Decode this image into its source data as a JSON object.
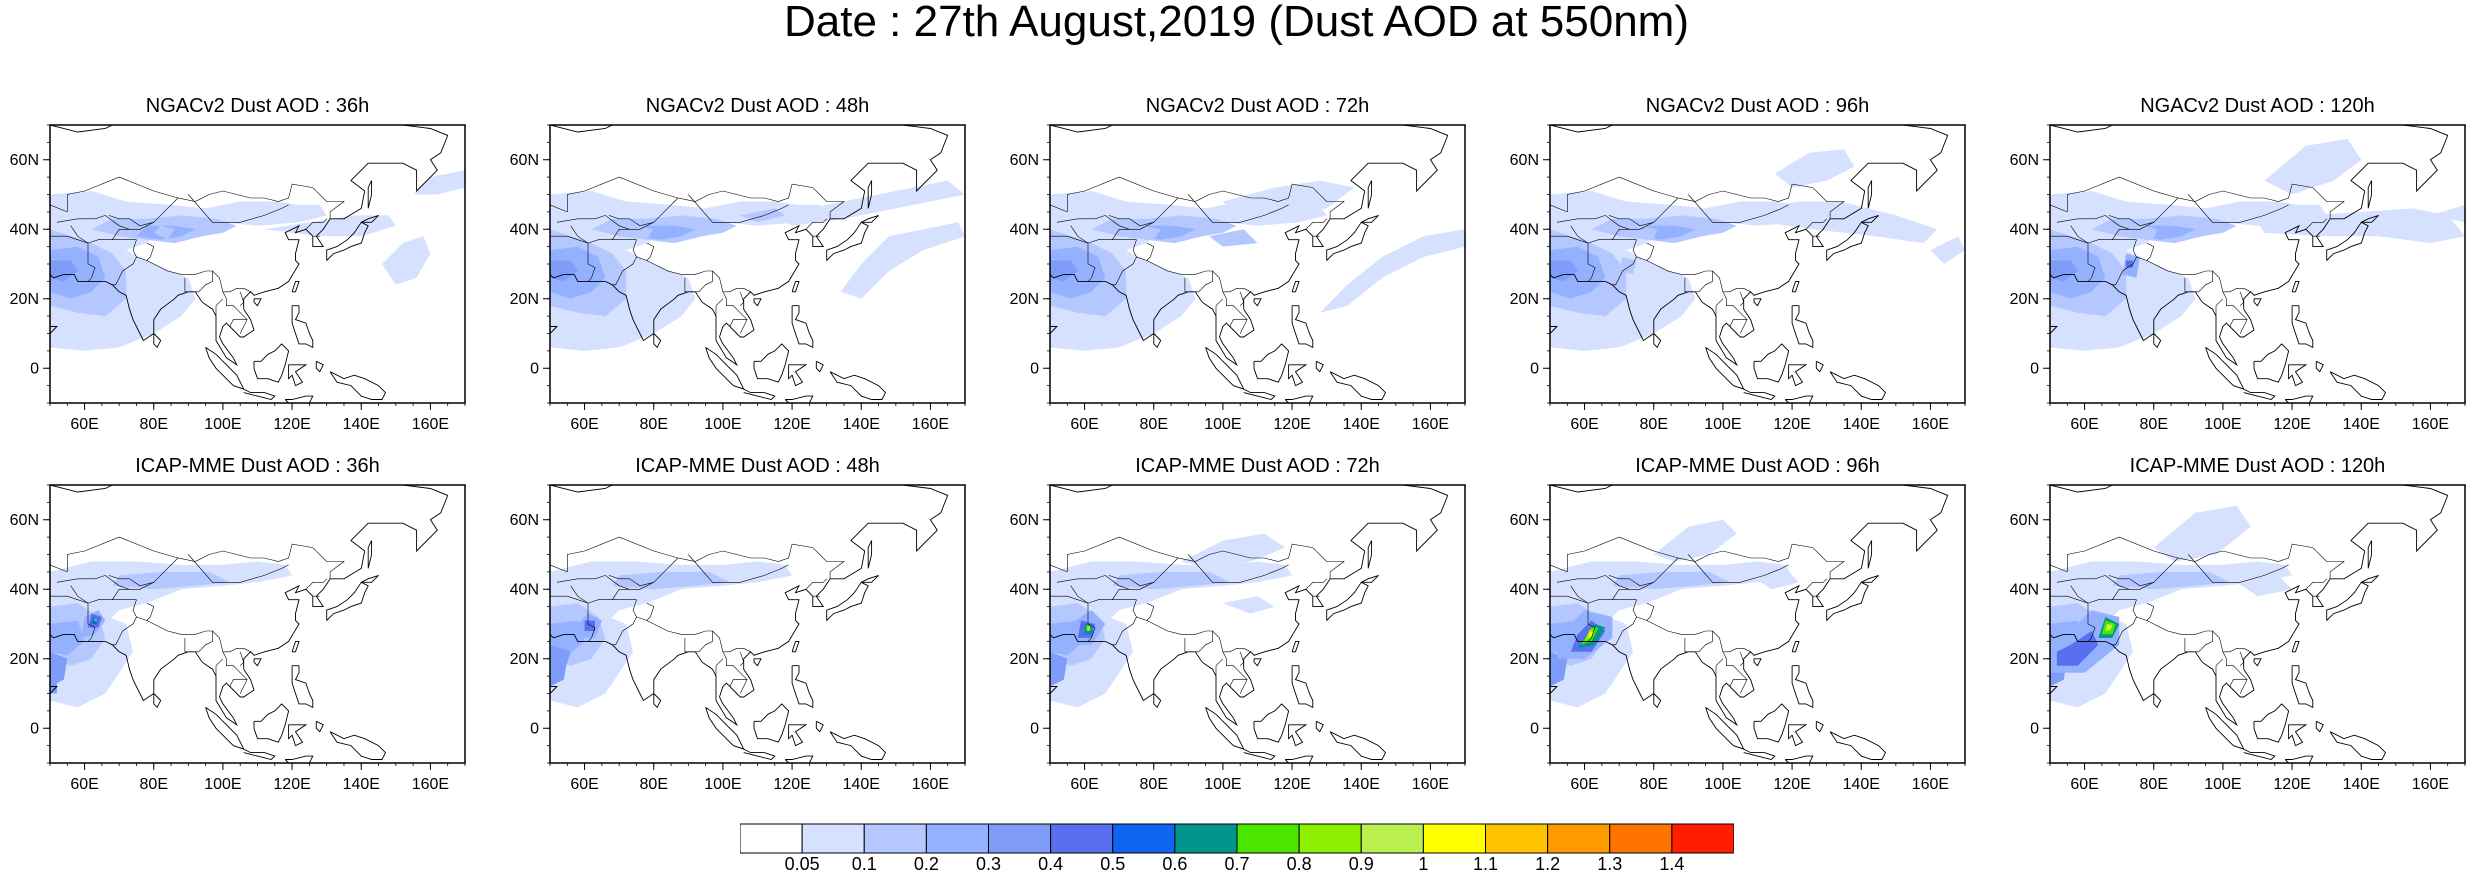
{
  "figure": {
    "title": "Date : 27th August,2019 (Dust AOD at 550nm)"
  },
  "map_axes": {
    "lon_ticks": [
      "60E",
      "80E",
      "100E",
      "120E",
      "140E",
      "160E"
    ],
    "lat_ticks": [
      "60N",
      "40N",
      "20N",
      "0"
    ],
    "lon_range": [
      50,
      170
    ],
    "lat_range": [
      -10,
      70
    ]
  },
  "panels": [
    {
      "id": "ngac-36",
      "title": "NGACv2 Dust AOD : 36h",
      "max_level": "0.4"
    },
    {
      "id": "ngac-48",
      "title": "NGACv2 Dust AOD : 48h",
      "max_level": "0.4"
    },
    {
      "id": "ngac-72",
      "title": "NGACv2 Dust AOD : 72h",
      "max_level": "0.4"
    },
    {
      "id": "ngac-96",
      "title": "NGACv2 Dust AOD : 96h",
      "max_level": "0.4"
    },
    {
      "id": "ngac-120",
      "title": "NGACv2 Dust AOD : 120h",
      "max_level": "0.6"
    },
    {
      "id": "icap-36",
      "title": "ICAP-MME Dust AOD : 36h",
      "max_level": "0.8"
    },
    {
      "id": "icap-48",
      "title": "ICAP-MME Dust AOD : 48h",
      "max_level": "0.5"
    },
    {
      "id": "icap-72",
      "title": "ICAP-MME Dust AOD : 72h",
      "max_level": "1.0"
    },
    {
      "id": "icap-96",
      "title": "ICAP-MME Dust AOD : 96h",
      "max_level": "1.1"
    },
    {
      "id": "icap-120",
      "title": "ICAP-MME Dust AOD : 120h",
      "max_level": "1.1"
    }
  ],
  "colorbar": {
    "labels": [
      "0.05",
      "0.1",
      "0.2",
      "0.3",
      "0.4",
      "0.5",
      "0.6",
      "0.7",
      "0.8",
      "0.9",
      "1",
      "1.1",
      "1.2",
      "1.3",
      "1.4"
    ],
    "colors": [
      "#ffffff",
      "#d6e1ff",
      "#b4c8ff",
      "#94b1ff",
      "#7e9cf8",
      "#5a6ef0",
      "#0f64f0",
      "#00968c",
      "#4be600",
      "#8cf000",
      "#b9f050",
      "#ffff00",
      "#ffc300",
      "#ff9b00",
      "#ff7300",
      "#ff1e00"
    ]
  }
}
